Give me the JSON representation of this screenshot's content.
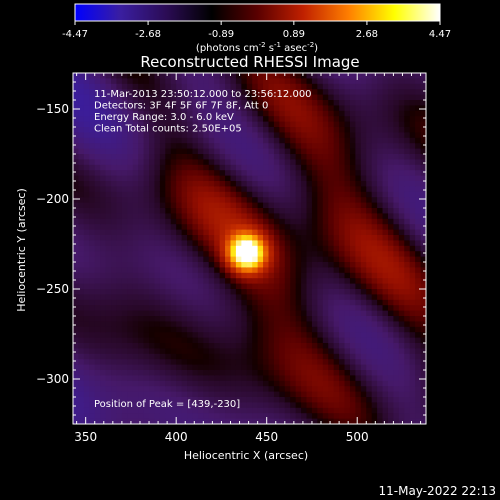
{
  "chart_data": {
    "type": "heatmap",
    "title": "Reconstructed RHESSI Image",
    "xlabel": "Heliocentric X (arcsec)",
    "ylabel": "Heliocentric Y (arcsec)",
    "xlim": [
      343,
      538
    ],
    "ylim": [
      -325,
      -130
    ],
    "x_ticks": [
      350,
      400,
      450,
      500
    ],
    "y_ticks": [
      -150,
      -200,
      -250,
      -300
    ],
    "colorbar": {
      "min": -4.47,
      "max": 4.47,
      "ticks": [
        "-4.47",
        "-2.68",
        "-0.89",
        "0.89",
        "2.68",
        "4.47"
      ],
      "units_label": "(photons cm-2 s-1 asec-2)",
      "colors": [
        "#0000ff",
        "#3a1ea0",
        "#2b0c55",
        "#000000",
        "#5a0000",
        "#c02000",
        "#ff7f00",
        "#ffff00",
        "#ffffff"
      ]
    },
    "annotations": [
      "11-Mar-2013 23:50:12.000 to 23:56:12.000",
      "Detectors: 3F 4F 5F 6F 7F 8F, Att 0",
      "Energy Range: 3.0 - 6.0 keV",
      "Clean    Total counts: 2.50E+05"
    ],
    "peak_label": "Position of Peak = [439,-230]",
    "peak": {
      "x": 439,
      "y": -230,
      "value": 4.47
    }
  },
  "footer": {
    "timestamp": "11-May-2022 22:13"
  }
}
